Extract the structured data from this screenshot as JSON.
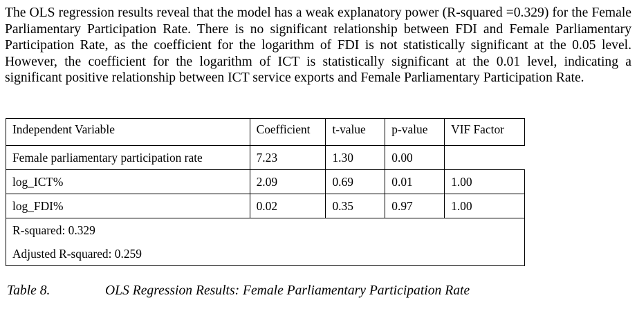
{
  "paragraph": "The OLS regression results reveal that the model has a weak explanatory power (R-squared =0.329) for the Female Parliamentary Participation Rate. There is no significant relationship between FDI and Female Parliamentary Participation Rate, as the coefficient for the logarithm of FDI is not statistically significant at the 0.05 level. However, the coefficient for the logarithm of ICT is statistically significant at the 0.01 level, indicating a significant positive relationship between ICT service exports and Female Parliamentary Participation Rate.",
  "table": {
    "headers": [
      "Independent Variable",
      "Coefficient",
      "t-value",
      "p-value",
      "VIF Factor"
    ],
    "rows": [
      [
        "Female parliamentary participation rate",
        "7.23",
        "1.30",
        "0.00",
        ""
      ],
      [
        "log_ICT%",
        "2.09",
        "0.69",
        "0.01",
        "1.00"
      ],
      [
        "log_FDI%",
        "0.02",
        "0.35",
        "0.97",
        "1.00"
      ]
    ],
    "r_squared": "R-squared: 0.329",
    "adjusted_r_squared": "Adjusted R-squared: 0.259"
  },
  "caption": {
    "label": "Table 8.",
    "title": "OLS Regression Results: Female Parliamentary Participation Rate"
  }
}
